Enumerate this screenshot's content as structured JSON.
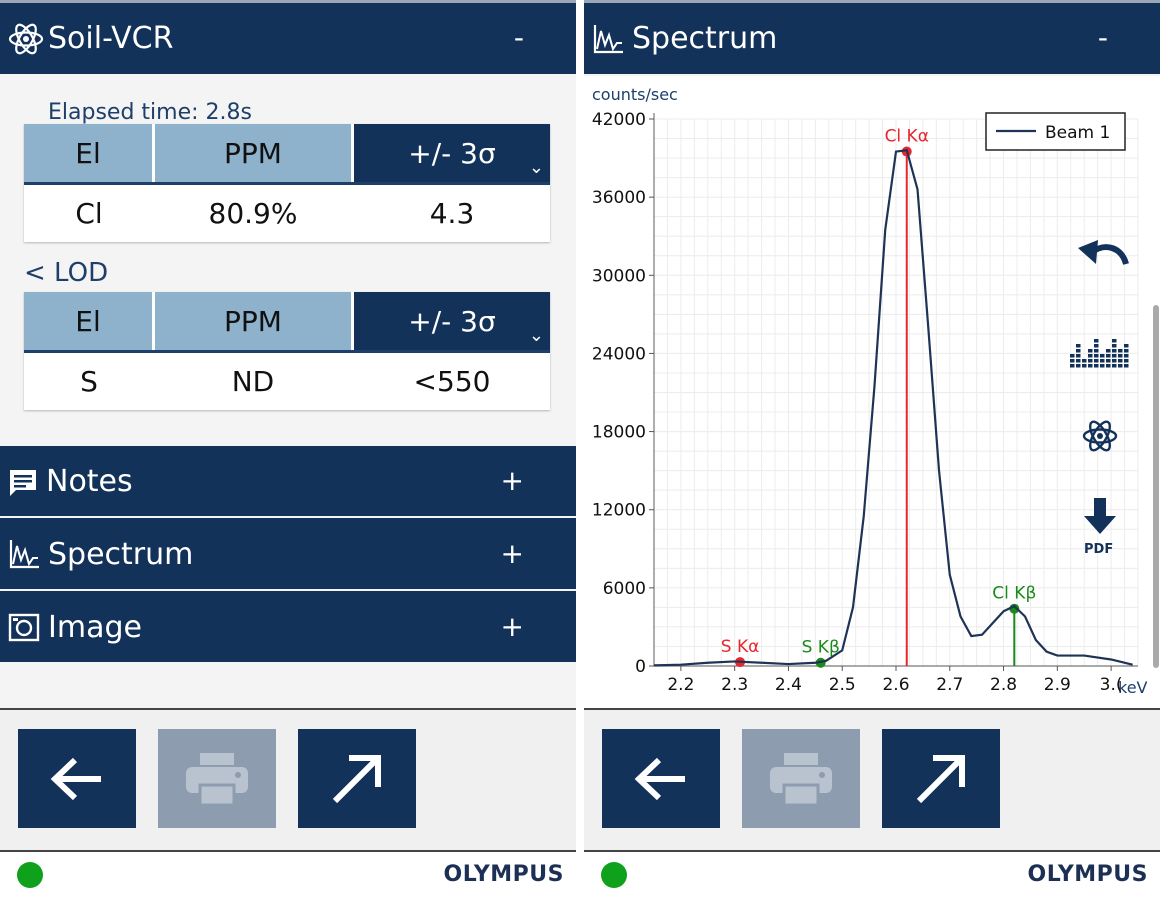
{
  "left": {
    "header": {
      "title": "Soil-VCR",
      "toggle": "-"
    },
    "elapsed_label": "Elapsed time: 2.8s",
    "results_table": {
      "columns": [
        "El",
        "PPM",
        "+/- 3σ"
      ],
      "rows": [
        {
          "el": "Cl",
          "ppm": "80.9%",
          "err": "4.3"
        }
      ]
    },
    "lod_label": "< LOD",
    "lod_table": {
      "columns": [
        "El",
        "PPM",
        "+/- 3σ"
      ],
      "rows": [
        {
          "el": "S",
          "ppm": "ND",
          "err": "<550"
        }
      ]
    },
    "sections": [
      {
        "label": "Notes",
        "toggle": "+",
        "icon": "notes-icon"
      },
      {
        "label": "Spectrum",
        "toggle": "+",
        "icon": "spectrum-icon"
      },
      {
        "label": "Image",
        "toggle": "+",
        "icon": "camera-icon"
      }
    ],
    "buttons": [
      {
        "icon": "back-arrow-icon",
        "enabled": true
      },
      {
        "icon": "printer-icon",
        "enabled": false
      },
      {
        "icon": "export-arrow-icon",
        "enabled": true
      }
    ],
    "status_color": "#0fa01c",
    "logo": "OLYMPUS"
  },
  "right": {
    "header": {
      "title": "Spectrum",
      "toggle": "-"
    },
    "tools": [
      {
        "icon": "undo-icon"
      },
      {
        "icon": "histogram-icon"
      },
      {
        "icon": "atom-icon"
      },
      {
        "icon": "pdf-download-icon",
        "label": "PDF"
      }
    ],
    "buttons": [
      {
        "icon": "back-arrow-icon",
        "enabled": true
      },
      {
        "icon": "printer-icon",
        "enabled": false
      },
      {
        "icon": "export-arrow-icon",
        "enabled": true
      }
    ],
    "status_color": "#0fa01c",
    "logo": "OLYMPUS"
  },
  "colors": {
    "navy": "#13325a",
    "header_light": "#8fb2cc",
    "disabled": "#8d9cae",
    "alpha_marker": "#e8262c",
    "beta_marker": "#1a8a1a"
  },
  "chart_data": {
    "type": "line",
    "ylabel": "counts/sec",
    "xlabel": "keV",
    "xlim": [
      2.15,
      3.05
    ],
    "ylim": [
      0,
      42000
    ],
    "yticks": [
      0,
      6000,
      12000,
      18000,
      24000,
      30000,
      36000,
      42000
    ],
    "xticks": [
      2.2,
      2.3,
      2.4,
      2.5,
      2.6,
      2.7,
      2.8,
      2.9,
      3.0
    ],
    "xtick_labels": [
      "2.2",
      "2.3",
      "2.4",
      "2.5",
      "2.6",
      "2.7",
      "2.8",
      "2.9",
      "3.("
    ],
    "grid": true,
    "legend_position": "top-right",
    "series": [
      {
        "name": "Beam 1",
        "x": [
          2.15,
          2.2,
          2.25,
          2.3,
          2.35,
          2.4,
          2.45,
          2.47,
          2.5,
          2.52,
          2.54,
          2.56,
          2.58,
          2.6,
          2.62,
          2.64,
          2.66,
          2.68,
          2.7,
          2.72,
          2.74,
          2.76,
          2.78,
          2.8,
          2.82,
          2.84,
          2.86,
          2.88,
          2.9,
          2.95,
          3.0,
          3.04
        ],
        "y": [
          50,
          100,
          250,
          350,
          250,
          150,
          250,
          400,
          1200,
          4500,
          11500,
          21500,
          33500,
          39500,
          39600,
          36600,
          26000,
          15000,
          7000,
          3800,
          2300,
          2400,
          3300,
          4200,
          4600,
          3800,
          2000,
          1100,
          800,
          800,
          500,
          100
        ]
      }
    ],
    "annotations": [
      {
        "label": "S Kα",
        "x": 2.31,
        "y": 300,
        "type": "alpha",
        "line": false
      },
      {
        "label": "S Kβ",
        "x": 2.46,
        "y": 250,
        "type": "beta",
        "line": false
      },
      {
        "label": "Cl Kα",
        "x": 2.62,
        "y": 39500,
        "type": "alpha",
        "line": true
      },
      {
        "label": "Cl Kβ",
        "x": 2.82,
        "y": 4400,
        "type": "beta",
        "line": true
      }
    ]
  }
}
